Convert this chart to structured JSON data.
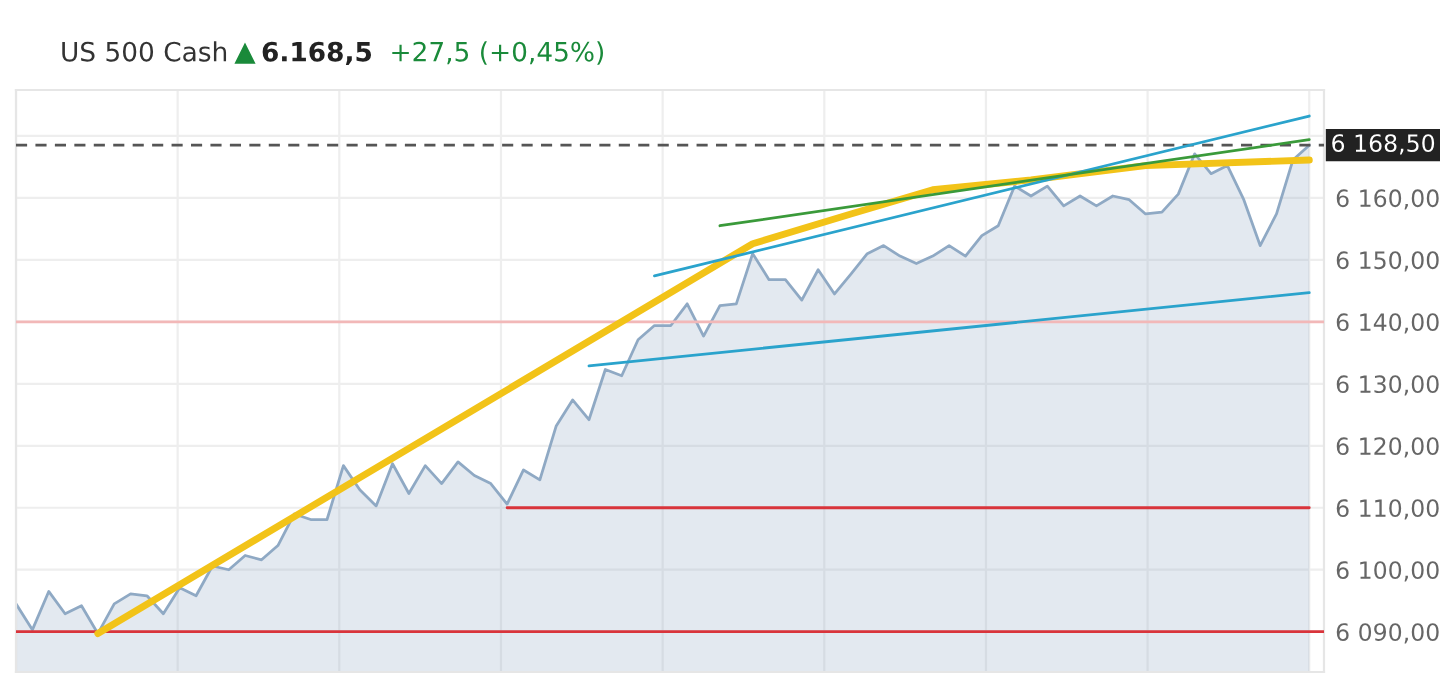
{
  "chart_data": {
    "type": "area",
    "title": "US 500 Cash",
    "annotations": [
      "6.168,5",
      "+27,5 (+0,45%)"
    ],
    "categories": [
      null,
      null,
      null,
      null,
      null,
      null,
      null,
      null,
      null,
      null,
      null,
      null,
      null,
      null,
      null,
      null,
      null,
      null,
      null,
      null,
      null,
      null,
      null,
      null,
      null,
      null,
      null,
      null,
      null,
      null,
      null,
      null,
      null,
      null,
      null,
      null,
      null,
      null,
      null,
      null,
      null,
      null,
      null,
      null,
      null,
      null,
      null,
      null,
      null,
      null,
      null,
      null,
      null,
      null,
      null,
      null,
      null,
      null,
      null,
      null,
      null,
      null,
      null,
      null,
      null,
      null,
      null,
      null,
      null,
      null,
      null,
      null,
      null,
      null,
      null,
      null,
      null,
      null,
      null,
      null
    ],
    "series": [
      {
        "color": "#8fa9c4",
        "values": [
          6094.5,
          6090.3,
          6096.5,
          6092.9,
          6094.2,
          6089.7,
          6094.5,
          6096.1,
          6095.8,
          6092.9,
          6097.1,
          6095.8,
          6100.6,
          6100.0,
          6102.3,
          6101.6,
          6103.9,
          6109.0,
          6108.1,
          6108.1,
          6116.8,
          6112.9,
          6110.3,
          6117.1,
          6112.3,
          6116.8,
          6113.9,
          6117.4,
          6115.2,
          6113.9,
          6110.6,
          6116.1,
          6114.5,
          6123.2,
          6127.4,
          6124.2,
          6132.3,
          6131.3,
          6137.1,
          6139.4,
          6139.4,
          6142.9,
          6137.7,
          6142.6,
          6142.9,
          6151.0,
          6146.8,
          6146.8,
          6143.5,
          6148.4,
          6144.5,
          6147.7,
          6151.0,
          6152.3,
          6150.6,
          6149.4,
          6150.6,
          6152.3,
          6150.6,
          6153.9,
          6155.5,
          6161.9,
          6160.3,
          6161.9,
          6158.7,
          6160.3,
          6158.7,
          6160.3,
          6159.7,
          6157.4,
          6157.7,
          6160.6,
          6167.1,
          6163.9,
          6165.2,
          6159.7,
          6152.3,
          6157.4,
          6166.1,
          6168.5
        ]
      },
      {
        "type": "line",
        "color": "#f2c318",
        "values": [
          null,
          null,
          null,
          null,
          null,
          6089.7,
          null,
          null,
          null,
          null,
          null,
          null,
          null,
          null,
          null,
          null,
          null,
          null,
          null,
          null,
          null,
          null,
          null,
          null,
          null,
          null,
          null,
          null,
          null,
          null,
          null,
          null,
          null,
          null,
          null,
          null,
          null,
          null,
          null,
          null,
          null,
          null,
          null,
          null,
          null,
          6152.6,
          null,
          null,
          null,
          null,
          null,
          6157.4,
          null,
          null,
          null,
          null,
          6161.3,
          null,
          null,
          null,
          null,
          null,
          6162.9,
          null,
          null,
          null,
          null,
          null,
          null,
          6165.2,
          null,
          null,
          null,
          null,
          null,
          null,
          null,
          null,
          null,
          6166.1
        ]
      },
      {
        "type": "line",
        "color": "#2aa3cc",
        "values": [
          null,
          null,
          null,
          null,
          null,
          null,
          null,
          null,
          null,
          null,
          null,
          null,
          null,
          null,
          null,
          null,
          null,
          null,
          null,
          null,
          null,
          null,
          null,
          null,
          null,
          null,
          null,
          null,
          null,
          null,
          null,
          null,
          null,
          null,
          null,
          6132.9,
          null,
          null,
          null,
          null,
          null,
          null,
          null,
          null,
          null,
          null,
          null,
          null,
          null,
          null,
          null,
          null,
          null,
          null,
          null,
          null,
          null,
          null,
          null,
          null,
          null,
          null,
          null,
          null,
          null,
          null,
          null,
          null,
          null,
          null,
          null,
          null,
          null,
          null,
          null,
          null,
          null,
          null,
          null,
          6144.7
        ]
      },
      {
        "type": "line",
        "color": "#2aa3cc",
        "values": [
          null,
          null,
          null,
          null,
          null,
          null,
          null,
          null,
          null,
          null,
          null,
          null,
          null,
          null,
          null,
          null,
          null,
          null,
          null,
          null,
          null,
          null,
          null,
          null,
          null,
          null,
          null,
          null,
          null,
          null,
          null,
          null,
          null,
          null,
          null,
          null,
          null,
          null,
          null,
          6147.4,
          null,
          null,
          null,
          null,
          null,
          null,
          null,
          null,
          null,
          null,
          null,
          null,
          null,
          null,
          null,
          null,
          null,
          null,
          null,
          null,
          null,
          null,
          null,
          null,
          null,
          null,
          null,
          null,
          null,
          null,
          null,
          null,
          null,
          null,
          null,
          null,
          null,
          null,
          null,
          6173.2
        ]
      },
      {
        "type": "line",
        "color": "#3a9a3a",
        "values": [
          null,
          null,
          null,
          null,
          null,
          null,
          null,
          null,
          null,
          null,
          null,
          null,
          null,
          null,
          null,
          null,
          null,
          null,
          null,
          null,
          null,
          null,
          null,
          null,
          null,
          null,
          null,
          null,
          null,
          null,
          null,
          null,
          null,
          null,
          null,
          null,
          null,
          null,
          null,
          null,
          null,
          null,
          null,
          6155.5,
          null,
          null,
          null,
          null,
          null,
          null,
          null,
          null,
          null,
          null,
          null,
          null,
          null,
          null,
          null,
          null,
          null,
          null,
          null,
          null,
          null,
          null,
          null,
          null,
          null,
          null,
          null,
          null,
          null,
          null,
          null,
          null,
          null,
          null,
          null,
          6169.4
        ]
      },
      {
        "type": "line",
        "color": "#d9343b",
        "values": [
          null,
          null,
          null,
          null,
          null,
          null,
          null,
          null,
          null,
          null,
          null,
          null,
          null,
          null,
          null,
          null,
          null,
          null,
          null,
          null,
          null,
          null,
          null,
          null,
          null,
          null,
          null,
          null,
          null,
          null,
          6110.0,
          null,
          null,
          null,
          null,
          null,
          null,
          null,
          null,
          null,
          null,
          null,
          null,
          null,
          null,
          null,
          null,
          null,
          null,
          null,
          null,
          null,
          null,
          null,
          null,
          null,
          null,
          null,
          null,
          null,
          null,
          null,
          null,
          null,
          null,
          null,
          null,
          null,
          null,
          null,
          null,
          null,
          null,
          null,
          null,
          null,
          null,
          null,
          null,
          6110.0
        ]
      }
    ],
    "ylim": [
      6083.5,
      6177.4
    ],
    "yticks": [
      {
        "value": 6090,
        "label": "6 090,00"
      },
      {
        "value": 6100,
        "label": "6 100,00"
      },
      {
        "value": 6110,
        "label": "6 110,00"
      },
      {
        "value": 6120,
        "label": "6 120,00"
      },
      {
        "value": 6130,
        "label": "6 130,00"
      },
      {
        "value": 6140,
        "label": "6 140,00"
      },
      {
        "value": 6150,
        "label": "6 150,00"
      },
      {
        "value": 6160,
        "label": "6 160,00"
      },
      {
        "value": 6170,
        "label": null
      }
    ],
    "ref_lines": [
      {
        "axis": "y",
        "value": 6090,
        "color": "#d9343b",
        "line_style": "solid"
      },
      {
        "axis": "y",
        "value": 6140,
        "color": "#f2b8b8",
        "line_style": "solid"
      },
      {
        "axis": "y",
        "value": 6168.5,
        "label": "6 168,50",
        "color": "#555555",
        "line_style": "dashed"
      }
    ],
    "grid": true,
    "legend": false,
    "tick_labels": "y"
  }
}
